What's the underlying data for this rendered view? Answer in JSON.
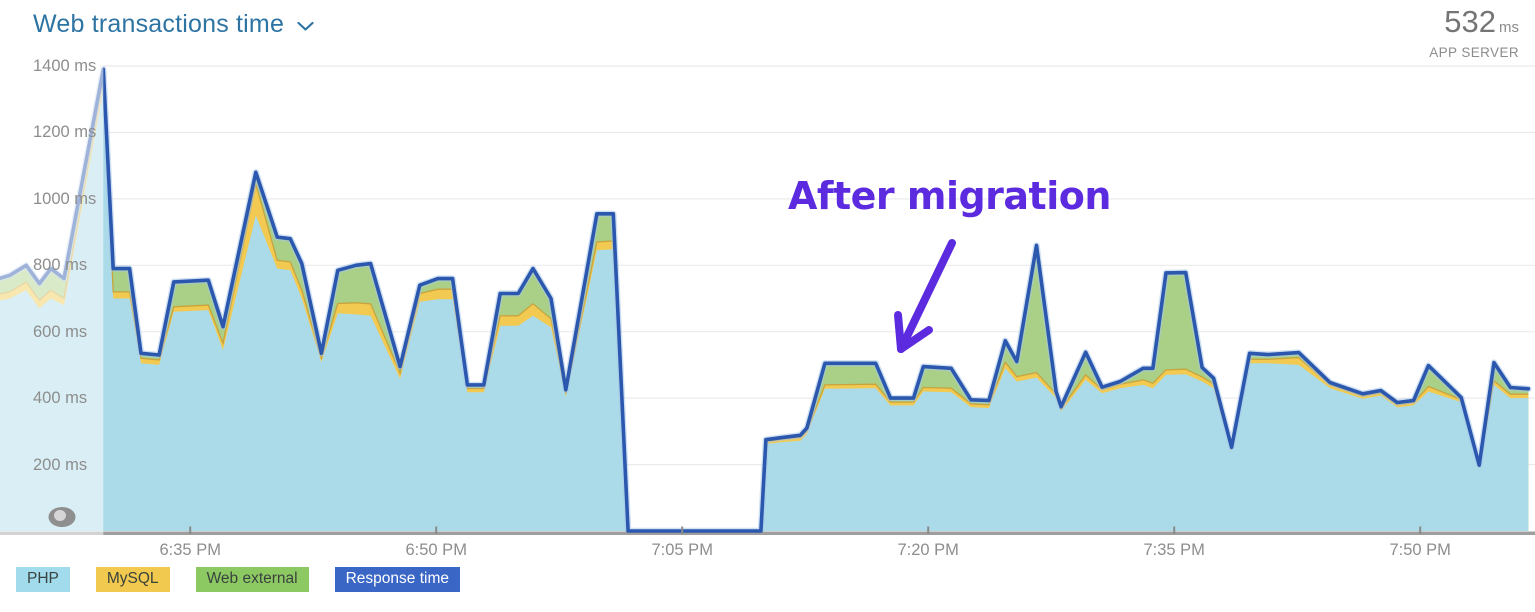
{
  "header": {
    "title": "Web transactions time",
    "current_value": "532",
    "current_unit": "ms",
    "scope_label": "APP SERVER"
  },
  "annotation": {
    "label": "After migration",
    "color": "#5c2be0"
  },
  "legend": {
    "items": [
      {
        "key": "php",
        "label": "PHP",
        "color": "#a2dbec",
        "text_color": "#3a423e"
      },
      {
        "key": "mysql",
        "label": "MySQL",
        "color": "#f0c94e",
        "text_color": "#3a423e"
      },
      {
        "key": "web-external",
        "label": "Web external",
        "color": "#8dc963",
        "text_color": "#3a423e"
      },
      {
        "key": "response-time",
        "label": "Response time",
        "color": "#3a66c6",
        "text_color": "#ffffff"
      }
    ]
  },
  "chart_data": {
    "type": "area",
    "stacked": true,
    "unit": "ms",
    "legend_position": "bottom",
    "grid": true,
    "faded_until_minute": 6.7,
    "gap_minutes": [
      38.7,
      46.8
    ],
    "x_axis": {
      "domain_minutes": [
        0.4,
        94
      ],
      "ticks": [
        {
          "label": "6:35 PM",
          "minute": 12
        },
        {
          "label": "6:50 PM",
          "minute": 27
        },
        {
          "label": "7:05 PM",
          "minute": 42
        },
        {
          "label": "7:20 PM",
          "minute": 57
        },
        {
          "label": "7:35 PM",
          "minute": 72
        },
        {
          "label": "7:50 PM",
          "minute": 87
        }
      ]
    },
    "y_axis": {
      "min": 0,
      "max": 1400,
      "ticks": [
        {
          "label": "1400 ms",
          "value": 1400
        },
        {
          "label": "1200 ms",
          "value": 1200
        },
        {
          "label": "1000 ms",
          "value": 1000
        },
        {
          "label": "800 ms",
          "value": 800
        },
        {
          "label": "600 ms",
          "value": 600
        },
        {
          "label": "400 ms",
          "value": 400
        },
        {
          "label": "200 ms",
          "value": 200
        }
      ]
    },
    "x_minutes": [
      0,
      1,
      2,
      2.8,
      3.5,
      4.3,
      6.7,
      7.3,
      8.3,
      9,
      10.1,
      11,
      13.1,
      14,
      16,
      17.3,
      18.1,
      18.8,
      20,
      21,
      22.1,
      23,
      24.8,
      26,
      27.1,
      28,
      28.9,
      29.9,
      30.9,
      32,
      32.9,
      34,
      34.9,
      36.8,
      37.8,
      38.7,
      46.8,
      47.1,
      48.2,
      49.2,
      49.6,
      50.7,
      53.8,
      54.7,
      56.1,
      56.7,
      58.4,
      59.6,
      60.7,
      61.7,
      62.4,
      63.6,
      64.8,
      65.1,
      66.6,
      67.6,
      68.7,
      70.1,
      70.7,
      71.5,
      72.7,
      73.7,
      74.4,
      75.5,
      76.6,
      77.7,
      79.6,
      81.5,
      83.5,
      84.6,
      85.6,
      86.6,
      87.5,
      89.5,
      90.6,
      91.5,
      92.5,
      93.6
    ],
    "series": [
      {
        "name": "PHP",
        "render": "stacked-area",
        "color": "#abdbe9",
        "values": [
          690,
          700,
          725,
          670,
          700,
          680,
          1330,
          700,
          700,
          505,
          500,
          660,
          665,
          545,
          950,
          790,
          785,
          700,
          508,
          655,
          652,
          648,
          458,
          690,
          698,
          698,
          418,
          418,
          618,
          618,
          648,
          613,
          404,
          845,
          848,
          0,
          0,
          262,
          268,
          272,
          292,
          428,
          430,
          378,
          378,
          420,
          418,
          373,
          370,
          490,
          450,
          462,
          400,
          360,
          455,
          415,
          430,
          440,
          430,
          470,
          472,
          450,
          430,
          240,
          505,
          505,
          500,
          430,
          398,
          408,
          372,
          378,
          420,
          388,
          190,
          440,
          400,
          400
        ]
      },
      {
        "name": "MySQL",
        "render": "stacked-area",
        "color": "#f2ca51",
        "values": [
          20,
          20,
          25,
          25,
          25,
          20,
          25,
          20,
          20,
          15,
          15,
          15,
          15,
          20,
          95,
          25,
          25,
          25,
          12,
          30,
          35,
          36,
          17,
          25,
          30,
          30,
          11,
          11,
          30,
          30,
          36,
          26,
          10,
          25,
          25,
          0,
          0,
          8,
          9,
          10,
          10,
          12,
          12,
          10,
          10,
          12,
          12,
          10,
          10,
          18,
          15,
          15,
          12,
          8,
          15,
          10,
          12,
          15,
          15,
          15,
          15,
          14,
          12,
          6,
          12,
          12,
          22,
          10,
          8,
          8,
          8,
          8,
          15,
          8,
          4,
          12,
          12,
          12
        ]
      },
      {
        "name": "Web external",
        "render": "stacked-area",
        "color": "#a9d086",
        "values": [
          45,
          50,
          50,
          50,
          65,
          60,
          35,
          70,
          70,
          15,
          15,
          75,
          75,
          50,
          35,
          70,
          70,
          80,
          15,
          100,
          113,
          121,
          20,
          25,
          32,
          32,
          11,
          11,
          67,
          67,
          106,
          61,
          11,
          85,
          82,
          0,
          0,
          5,
          5,
          6,
          8,
          65,
          63,
          12,
          12,
          63,
          60,
          12,
          13,
          65,
          45,
          383,
          8,
          6,
          68,
          8,
          8,
          35,
          45,
          292,
          291,
          28,
          18,
          6,
          18,
          14,
          15,
          7,
          7,
          7,
          7,
          7,
          63,
          6,
          4,
          55,
          20,
          16
        ]
      },
      {
        "name": "Response time",
        "render": "line",
        "color": "#2b58ae",
        "values": [
          755,
          770,
          800,
          745,
          790,
          760,
          1390,
          790,
          790,
          535,
          530,
          750,
          755,
          615,
          1080,
          885,
          880,
          805,
          535,
          785,
          800,
          805,
          495,
          740,
          760,
          760,
          440,
          440,
          715,
          715,
          790,
          700,
          425,
          955,
          955,
          0,
          0,
          275,
          282,
          288,
          310,
          505,
          505,
          400,
          400,
          495,
          490,
          395,
          393,
          573,
          510,
          860,
          420,
          374,
          538,
          433,
          450,
          490,
          490,
          777,
          778,
          492,
          460,
          252,
          535,
          531,
          537,
          447,
          413,
          423,
          387,
          393,
          498,
          402,
          198,
          507,
          432,
          428
        ]
      }
    ]
  }
}
